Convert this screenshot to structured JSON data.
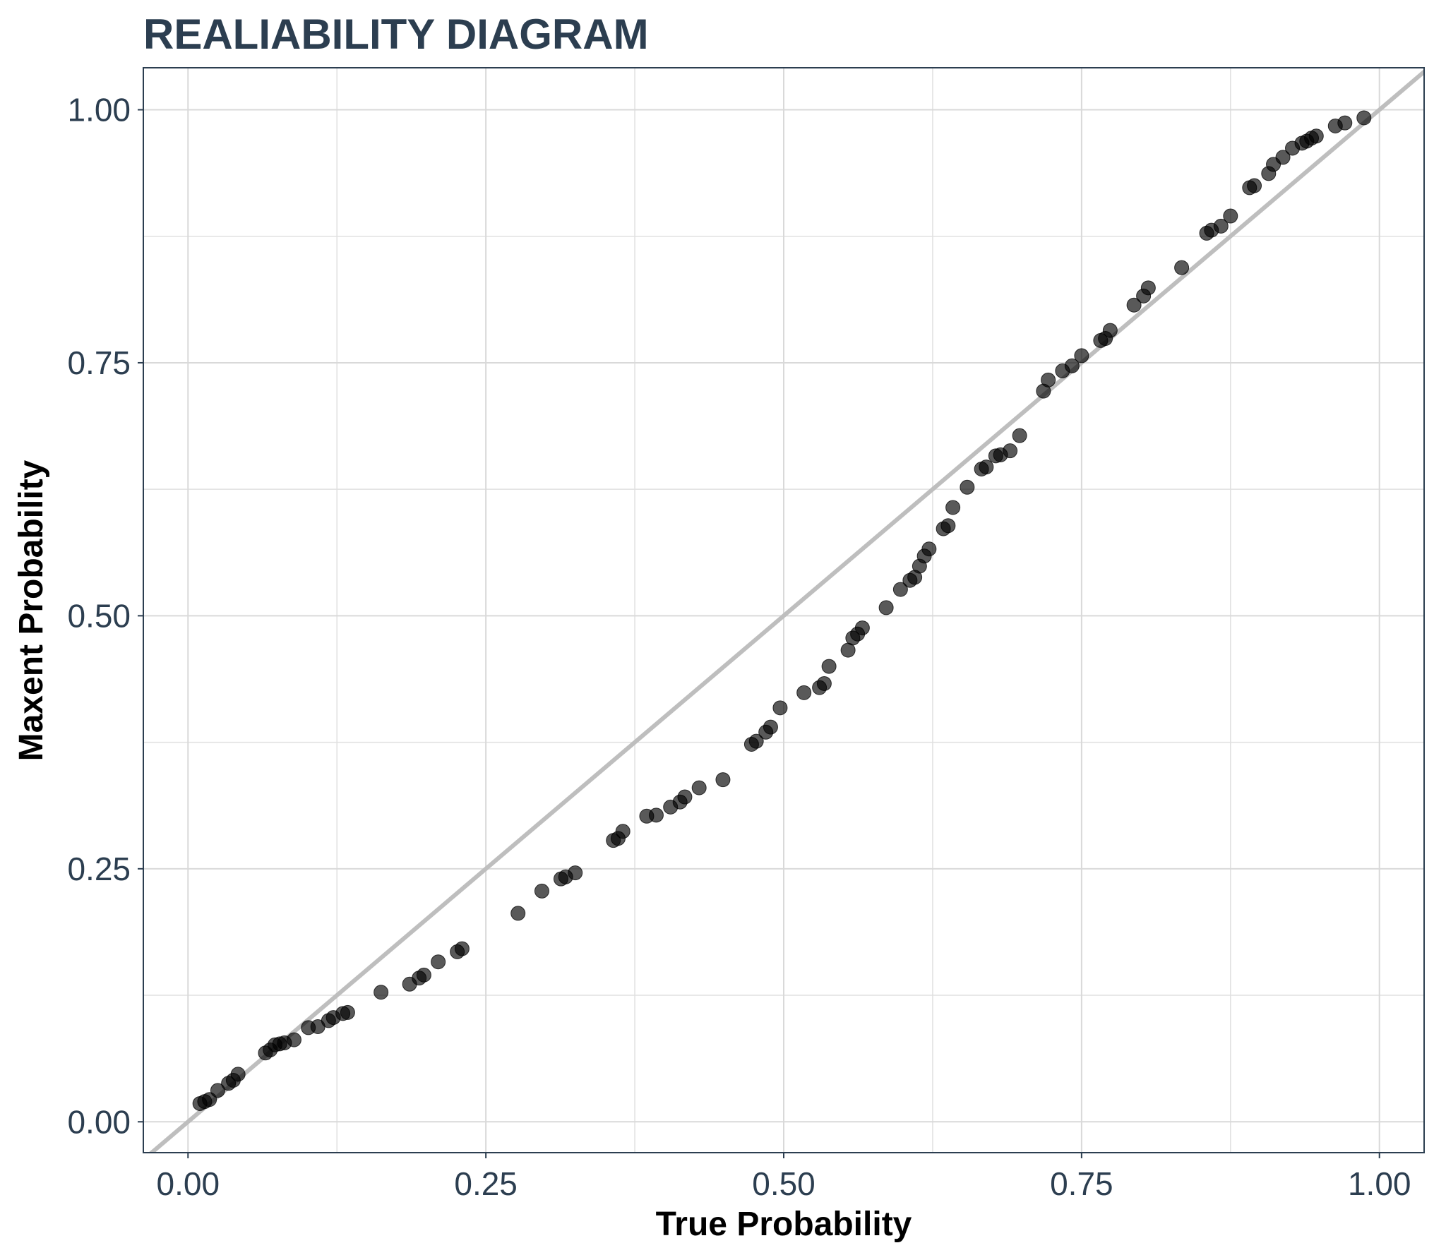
{
  "chart_data": {
    "type": "scatter",
    "title": "REALIABILITY DIAGRAM",
    "xlabel": "True Probability",
    "ylabel": "Maxent Probability",
    "xlim": [
      -0.0375,
      1.0375
    ],
    "ylim": [
      -0.0305,
      1.0415
    ],
    "x_ticks": [
      0.0,
      0.25,
      0.5,
      0.75,
      1.0
    ],
    "x_tick_labels": [
      "0.00",
      "0.25",
      "0.50",
      "0.75",
      "1.00"
    ],
    "y_ticks": [
      0.0,
      0.25,
      0.5,
      0.75,
      1.0
    ],
    "y_tick_labels": [
      "0.00",
      "0.25",
      "0.50",
      "0.75",
      "1.00"
    ],
    "grid": true,
    "reference_line": {
      "type": "diagonal",
      "label": "",
      "color": "#bebebe"
    },
    "point_color": "#000000",
    "points": [
      [
        0.01,
        0.018
      ],
      [
        0.014,
        0.02
      ],
      [
        0.018,
        0.022
      ],
      [
        0.025,
        0.031
      ],
      [
        0.034,
        0.038
      ],
      [
        0.038,
        0.041
      ],
      [
        0.042,
        0.047
      ],
      [
        0.065,
        0.068
      ],
      [
        0.069,
        0.071
      ],
      [
        0.073,
        0.076
      ],
      [
        0.077,
        0.077
      ],
      [
        0.081,
        0.078
      ],
      [
        0.089,
        0.081
      ],
      [
        0.101,
        0.093
      ],
      [
        0.109,
        0.094
      ],
      [
        0.118,
        0.1
      ],
      [
        0.122,
        0.103
      ],
      [
        0.13,
        0.107
      ],
      [
        0.134,
        0.108
      ],
      [
        0.162,
        0.128
      ],
      [
        0.186,
        0.136
      ],
      [
        0.194,
        0.142
      ],
      [
        0.198,
        0.145
      ],
      [
        0.21,
        0.158
      ],
      [
        0.226,
        0.168
      ],
      [
        0.23,
        0.171
      ],
      [
        0.277,
        0.206
      ],
      [
        0.297,
        0.228
      ],
      [
        0.313,
        0.24
      ],
      [
        0.317,
        0.242
      ],
      [
        0.325,
        0.246
      ],
      [
        0.357,
        0.278
      ],
      [
        0.361,
        0.28
      ],
      [
        0.365,
        0.287
      ],
      [
        0.385,
        0.302
      ],
      [
        0.393,
        0.303
      ],
      [
        0.405,
        0.311
      ],
      [
        0.413,
        0.316
      ],
      [
        0.417,
        0.321
      ],
      [
        0.429,
        0.33
      ],
      [
        0.449,
        0.338
      ],
      [
        0.473,
        0.373
      ],
      [
        0.477,
        0.376
      ],
      [
        0.485,
        0.385
      ],
      [
        0.489,
        0.39
      ],
      [
        0.497,
        0.409
      ],
      [
        0.517,
        0.424
      ],
      [
        0.53,
        0.429
      ],
      [
        0.534,
        0.433
      ],
      [
        0.538,
        0.45
      ],
      [
        0.554,
        0.466
      ],
      [
        0.558,
        0.478
      ],
      [
        0.562,
        0.482
      ],
      [
        0.566,
        0.488
      ],
      [
        0.586,
        0.508
      ],
      [
        0.598,
        0.526
      ],
      [
        0.606,
        0.535
      ],
      [
        0.61,
        0.538
      ],
      [
        0.614,
        0.549
      ],
      [
        0.618,
        0.559
      ],
      [
        0.622,
        0.566
      ],
      [
        0.634,
        0.586
      ],
      [
        0.638,
        0.589
      ],
      [
        0.642,
        0.607
      ],
      [
        0.654,
        0.627
      ],
      [
        0.666,
        0.645
      ],
      [
        0.67,
        0.647
      ],
      [
        0.678,
        0.658
      ],
      [
        0.682,
        0.659
      ],
      [
        0.69,
        0.663
      ],
      [
        0.698,
        0.678
      ],
      [
        0.718,
        0.722
      ],
      [
        0.722,
        0.733
      ],
      [
        0.734,
        0.742
      ],
      [
        0.742,
        0.747
      ],
      [
        0.75,
        0.757
      ],
      [
        0.766,
        0.772
      ],
      [
        0.77,
        0.774
      ],
      [
        0.774,
        0.782
      ],
      [
        0.794,
        0.807
      ],
      [
        0.802,
        0.816
      ],
      [
        0.806,
        0.824
      ],
      [
        0.834,
        0.844
      ],
      [
        0.855,
        0.878
      ],
      [
        0.859,
        0.881
      ],
      [
        0.867,
        0.885
      ],
      [
        0.875,
        0.895
      ],
      [
        0.891,
        0.923
      ],
      [
        0.895,
        0.925
      ],
      [
        0.907,
        0.937
      ],
      [
        0.911,
        0.946
      ],
      [
        0.919,
        0.953
      ],
      [
        0.927,
        0.962
      ],
      [
        0.935,
        0.967
      ],
      [
        0.939,
        0.969
      ],
      [
        0.943,
        0.972
      ],
      [
        0.947,
        0.974
      ],
      [
        0.963,
        0.984
      ],
      [
        0.971,
        0.987
      ],
      [
        0.987,
        0.992
      ]
    ]
  }
}
